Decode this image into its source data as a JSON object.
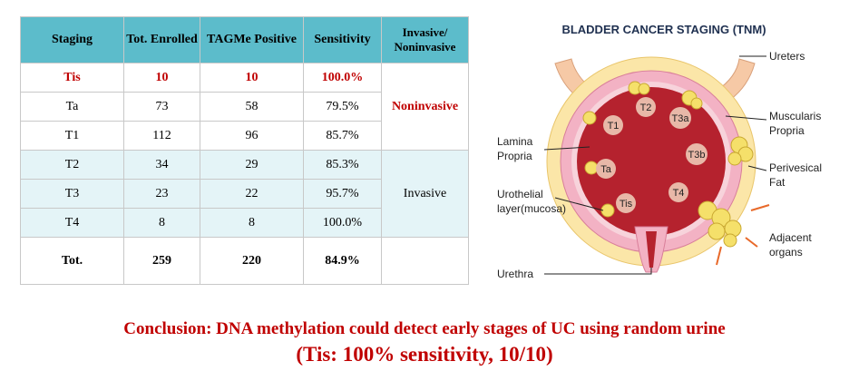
{
  "table": {
    "header": [
      "Staging",
      "Tot. Enrolled",
      "TAGMe Positive",
      "Sensitivity",
      "Invasive/\nNoninvasive"
    ],
    "rows": [
      [
        "Tis",
        "10",
        "10",
        "100.0%"
      ],
      [
        "Ta",
        "73",
        "58",
        "79.5%"
      ],
      [
        "T1",
        "112",
        "96",
        "85.7%"
      ],
      [
        "T2",
        "34",
        "29",
        "85.3%"
      ],
      [
        "T3",
        "23",
        "22",
        "95.7%"
      ],
      [
        "T4",
        "8",
        "8",
        "100.0%"
      ],
      [
        "Tot.",
        "259",
        "220",
        "84.9%"
      ]
    ],
    "groups": [
      "Noninvasive",
      "Invasive"
    ]
  },
  "diagram": {
    "title": "BLADDER CANCER STAGING (TNM)",
    "labels": [
      "Ureters",
      "Muscularis\nPropria",
      "Lamina\nPropria",
      "Perivesical\nFat",
      "Urothelial\nlayer(mucosa)",
      "Adjacent\norgans",
      "Urethra"
    ],
    "stages": [
      "T1",
      "T2",
      "T3a",
      "T3b",
      "Ta",
      "T4",
      "Tis"
    ]
  },
  "conclusion": [
    "Conclusion: DNA methylation could detect early stages of UC using random urine",
    "(Tis: 100% sensitivity, 10/10)"
  ]
}
